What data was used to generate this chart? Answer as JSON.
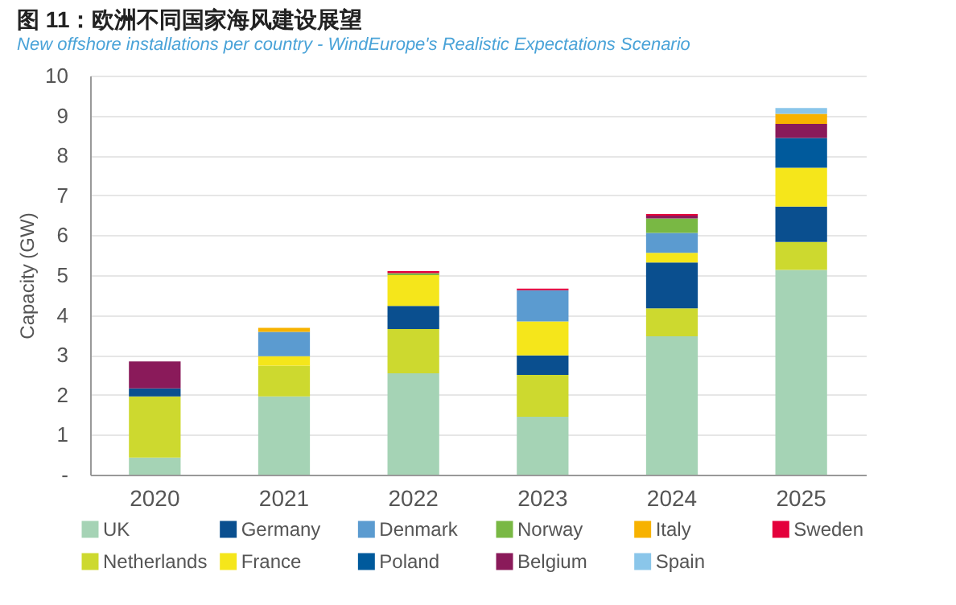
{
  "chart_data": {
    "type": "bar",
    "title": "图 11：欧洲不同国家海风建设展望",
    "subtitle": "New offshore installations per country - WindEurope's Realistic Expectations Scenario",
    "ylabel": "Capacity (GW)",
    "categories": [
      "2020",
      "2021",
      "2022",
      "2023",
      "2024",
      "2025"
    ],
    "series": [
      {
        "name": "UK",
        "color": "#a5d3b5",
        "values": [
          0.43,
          1.96,
          2.54,
          1.45,
          3.47,
          5.13
        ]
      },
      {
        "name": "Netherlands",
        "color": "#cdd92f",
        "values": [
          1.53,
          0.77,
          1.11,
          1.05,
          0.7,
          0.7
        ]
      },
      {
        "name": "Germany",
        "color": "#0a4f8f",
        "values": [
          0.2,
          null,
          0.58,
          0.49,
          1.15,
          0.89
        ]
      },
      {
        "name": "France",
        "color": "#f5e61b",
        "values": [
          null,
          0.24,
          0.77,
          0.85,
          0.24,
          0.97
        ]
      },
      {
        "name": "Denmark",
        "color": "#5b9bd0",
        "values": [
          null,
          0.61,
          null,
          0.78,
          0.5,
          null
        ]
      },
      {
        "name": "Poland",
        "color": "#005a9c",
        "values": [
          null,
          null,
          null,
          null,
          null,
          0.75
        ]
      },
      {
        "name": "Norway",
        "color": "#79b844",
        "values": [
          null,
          null,
          0.05,
          null,
          0.36,
          null
        ]
      },
      {
        "name": "Belgium",
        "color": "#8a1a5a",
        "values": [
          0.68,
          null,
          null,
          null,
          0.07,
          0.35
        ]
      },
      {
        "name": "Italy",
        "color": "#f7b200",
        "values": [
          null,
          0.1,
          null,
          null,
          null,
          0.25
        ]
      },
      {
        "name": "Spain",
        "color": "#8ac6ea",
        "values": [
          null,
          null,
          null,
          null,
          null,
          0.15
        ]
      },
      {
        "name": "Sweden",
        "color": "#e4003b",
        "values": [
          null,
          null,
          0.05,
          0.04,
          0.04,
          null
        ]
      }
    ],
    "stacked": true,
    "ylim": [
      0,
      10
    ],
    "yticks": [
      {
        "value": 0,
        "label": "-"
      },
      1,
      2,
      3,
      4,
      5,
      6,
      7,
      8,
      9,
      10
    ],
    "grid": "y",
    "legend": "bottom"
  }
}
